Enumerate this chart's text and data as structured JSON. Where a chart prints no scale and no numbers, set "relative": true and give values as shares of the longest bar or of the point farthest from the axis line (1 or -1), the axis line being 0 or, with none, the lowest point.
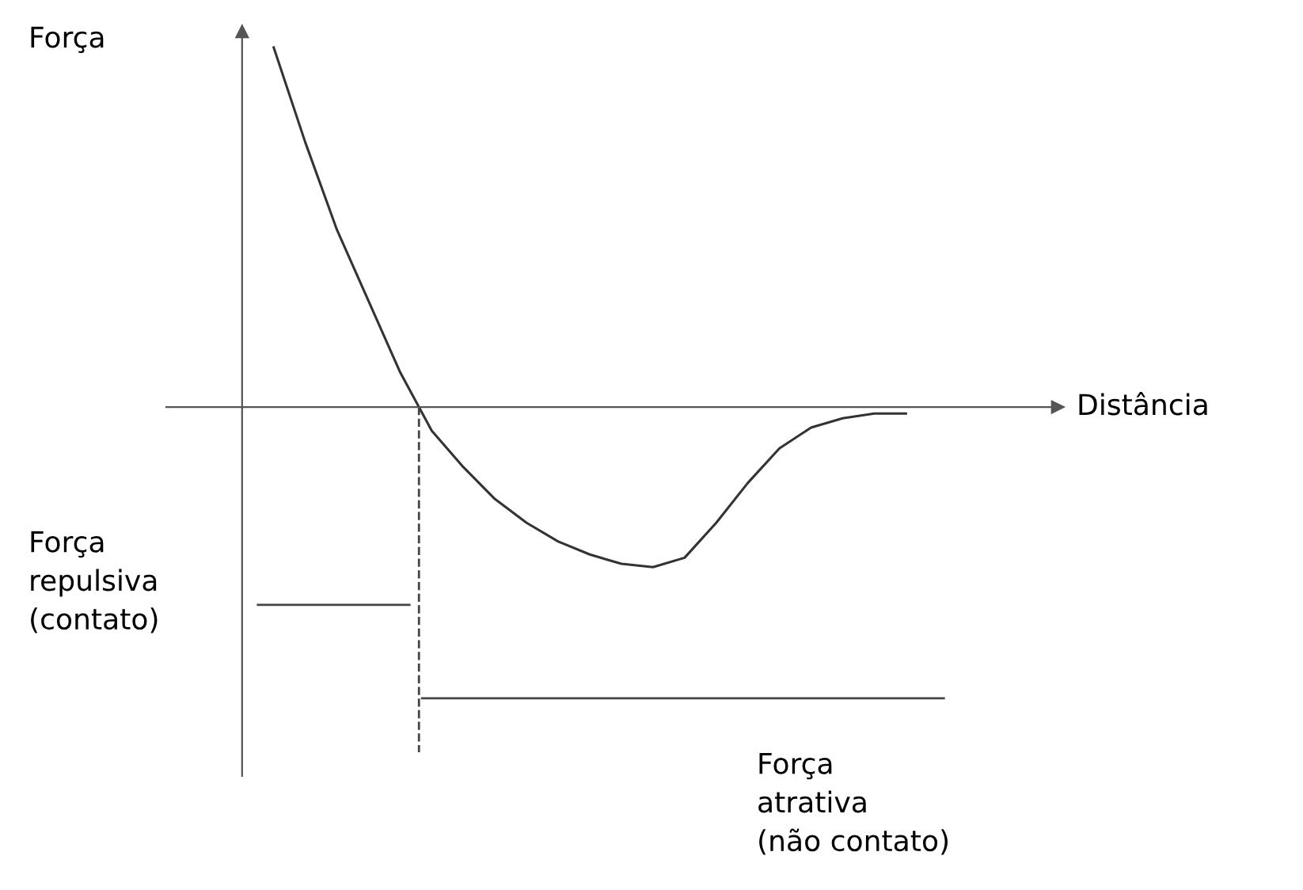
{
  "chart_data": {
    "type": "line",
    "relative": true,
    "categories": [
      null,
      null,
      null,
      null,
      null,
      null,
      null,
      null,
      null,
      null,
      null,
      null,
      null,
      null,
      null,
      null,
      null,
      null,
      null,
      null,
      null
    ],
    "series": [
      {
        "color": "#333333",
        "values": [
          1.0,
          0.736,
          0.493,
          0.295,
          0.097,
          -0.066,
          -0.167,
          -0.256,
          -0.322,
          -0.374,
          -0.41,
          -0.436,
          -0.445,
          -0.419,
          -0.322,
          -0.211,
          -0.115,
          -0.057,
          -0.031,
          -0.018,
          -0.018
        ]
      }
    ],
    "annotations": [
      "Força",
      "Distância",
      "Força\nrepulsiva\n(contato)",
      "Força\natrativa\n(não contato)"
    ],
    "marker": "none",
    "line_style": "solid"
  }
}
